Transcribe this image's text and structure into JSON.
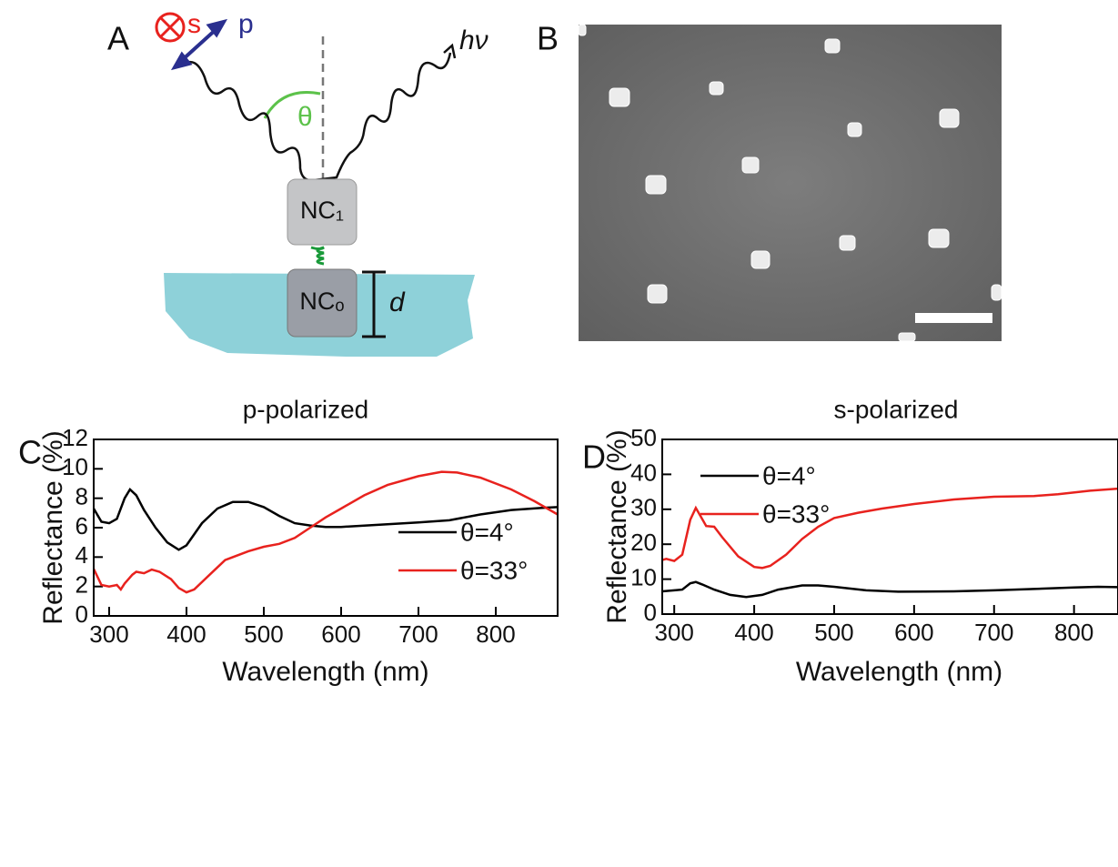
{
  "diagram": {
    "label": "A",
    "s": "s",
    "p": "p",
    "hv": "hν",
    "theta": "θ",
    "nc1": "NC₁",
    "nc0": "NCₒ",
    "d": "d"
  },
  "image_panel": {
    "label": "B"
  },
  "chart_data": [
    {
      "type": "line",
      "panel_label": "C",
      "title": "p-polarized",
      "x_label": "Wavelength (nm)",
      "y_label": "Reflectance (%)",
      "xlim": [
        280,
        880
      ],
      "ylim": [
        0,
        12
      ],
      "xticks": [
        300,
        400,
        500,
        600,
        700,
        800
      ],
      "yticks": [
        0,
        2,
        4,
        6,
        8,
        10,
        12
      ],
      "legend": "lower right",
      "series": [
        {
          "name": "θ=4°",
          "color": "#000000",
          "x": [
            280,
            290,
            300,
            310,
            320,
            327,
            335,
            345,
            360,
            375,
            390,
            400,
            420,
            440,
            460,
            480,
            500,
            520,
            540,
            560,
            580,
            600,
            650,
            700,
            740,
            780,
            820,
            860,
            880
          ],
          "values": [
            7.3,
            6.4,
            6.3,
            6.6,
            8.0,
            8.6,
            8.2,
            7.2,
            6.0,
            5.0,
            4.5,
            4.8,
            6.3,
            7.3,
            7.75,
            7.75,
            7.4,
            6.8,
            6.3,
            6.15,
            6.05,
            6.05,
            6.2,
            6.35,
            6.5,
            6.9,
            7.2,
            7.35,
            7.4
          ]
        },
        {
          "name": "θ=33°",
          "color": "#e8221e",
          "x": [
            280,
            290,
            300,
            310,
            315,
            320,
            330,
            335,
            345,
            355,
            365,
            380,
            390,
            400,
            410,
            430,
            450,
            480,
            500,
            520,
            540,
            560,
            580,
            600,
            630,
            660,
            700,
            730,
            750,
            780,
            820,
            850,
            880
          ],
          "values": [
            3.2,
            2.1,
            2.0,
            2.1,
            1.8,
            2.2,
            2.8,
            3.0,
            2.9,
            3.15,
            3.0,
            2.5,
            1.9,
            1.6,
            1.8,
            2.8,
            3.8,
            4.4,
            4.7,
            4.9,
            5.3,
            6.0,
            6.7,
            7.3,
            8.2,
            8.9,
            9.5,
            9.8,
            9.75,
            9.4,
            8.6,
            7.8,
            6.9
          ]
        }
      ]
    },
    {
      "type": "line",
      "panel_label": "D",
      "title": "s-polarized",
      "x_label": "Wavelength (nm)",
      "y_label": "Reflectance (%)",
      "xlim": [
        285,
        855
      ],
      "ylim": [
        0,
        50
      ],
      "xticks": [
        300,
        400,
        500,
        600,
        700,
        800
      ],
      "yticks": [
        0,
        10,
        20,
        30,
        40,
        50
      ],
      "legend": "upper left",
      "series": [
        {
          "name": "θ=4°",
          "color": "#000000",
          "x": [
            285,
            300,
            310,
            320,
            327,
            335,
            350,
            370,
            390,
            410,
            430,
            460,
            480,
            500,
            540,
            580,
            650,
            700,
            750,
            800,
            830,
            855
          ],
          "values": [
            6.5,
            6.8,
            7.0,
            8.8,
            9.2,
            8.5,
            7.0,
            5.5,
            4.9,
            5.5,
            7.0,
            8.2,
            8.2,
            7.8,
            6.8,
            6.4,
            6.5,
            6.8,
            7.2,
            7.6,
            7.8,
            7.7
          ]
        },
        {
          "name": "θ=33°",
          "color": "#e8221e",
          "x": [
            285,
            290,
            300,
            310,
            320,
            327,
            333,
            340,
            350,
            360,
            380,
            400,
            410,
            420,
            440,
            460,
            480,
            500,
            530,
            560,
            600,
            650,
            700,
            750,
            780,
            820,
            855
          ],
          "values": [
            15.5,
            15.8,
            15.2,
            17,
            27,
            30.4,
            28,
            25.2,
            25,
            22,
            16.5,
            13.5,
            13.2,
            13.8,
            17,
            21.5,
            25,
            27.5,
            29,
            30.2,
            31.5,
            32.8,
            33.6,
            33.8,
            34.3,
            35.3,
            35.9
          ]
        }
      ]
    }
  ]
}
